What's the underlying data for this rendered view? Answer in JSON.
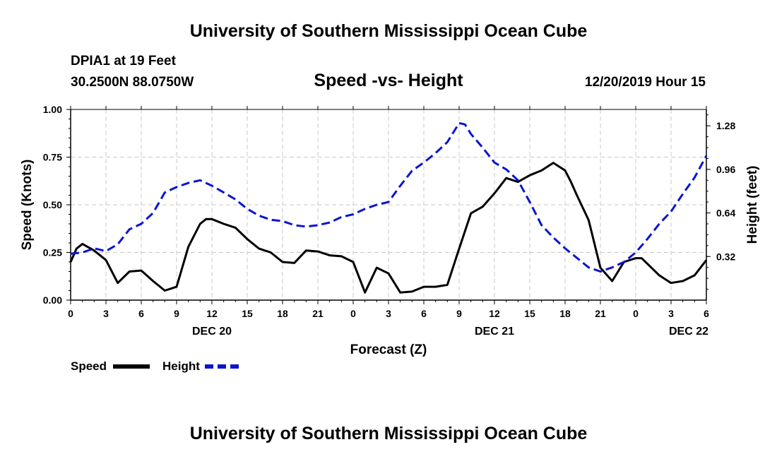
{
  "header": {
    "title": "University of Southern Mississippi Ocean Cube",
    "station": "DPIA1 at 19 Feet",
    "coords": "30.2500N 88.0750W",
    "subtitle": "Speed -vs- Height",
    "date": "12/20/2019 Hour 15"
  },
  "footer": {
    "title": "University of Southern Mississippi Ocean Cube"
  },
  "legend": {
    "speed": "Speed",
    "height": "Height"
  },
  "colors": {
    "speed": "#000000",
    "height": "#0a14d2",
    "grid": "#c8c8c8"
  },
  "chart_data": {
    "type": "line",
    "title": "Speed -vs- Height",
    "xlabel": "Forecast (Z)",
    "ylabel": "Speed (Knots)",
    "y2label": "Height (feet)",
    "xlim": [
      0,
      54
    ],
    "ylim": [
      0,
      1.0
    ],
    "y2lim": [
      0.0,
      1.4
    ],
    "x_ticks": [
      0,
      3,
      6,
      9,
      12,
      15,
      18,
      21,
      24,
      27,
      30,
      33,
      36,
      39,
      42,
      45,
      48,
      51,
      54
    ],
    "x_tick_labels": [
      "0",
      "3",
      "6",
      "9",
      "12",
      "15",
      "18",
      "21",
      "0",
      "3",
      "6",
      "9",
      "12",
      "15",
      "18",
      "21",
      "0",
      "3",
      "6"
    ],
    "y_ticks": [
      0,
      0.25,
      0.5,
      0.75,
      1.0
    ],
    "y_tick_labels": [
      "0.00",
      "0.25",
      "0.50",
      "0.75",
      "1.00"
    ],
    "y2_ticks": [
      0.32,
      0.64,
      0.96,
      1.28
    ],
    "y2_tick_labels": [
      "0.32",
      "0.64",
      "0.96",
      "1.28"
    ],
    "day_labels": [
      {
        "x": 12,
        "label": "DEC 20"
      },
      {
        "x": 36,
        "label": "DEC 21"
      },
      {
        "x": 52.5,
        "label": "DEC 22"
      }
    ],
    "grid": true,
    "series": [
      {
        "name": "Speed",
        "axis": "left",
        "style": "solid",
        "x": [
          0,
          0.5,
          1,
          2,
          3,
          4,
          5,
          6,
          7,
          8,
          8.5,
          9,
          10,
          11,
          11.5,
          12,
          13,
          14,
          15,
          16,
          17,
          18,
          19,
          20,
          21,
          22,
          23,
          24,
          25,
          26,
          27,
          28,
          29,
          30,
          31,
          32,
          33,
          34,
          35,
          36,
          37,
          38,
          39,
          40,
          41,
          42,
          42.5,
          43,
          44,
          45,
          46,
          47,
          48,
          48.5,
          49,
          50,
          51,
          52,
          53,
          54
        ],
        "values": [
          0.2,
          0.27,
          0.295,
          0.26,
          0.21,
          0.09,
          0.15,
          0.155,
          0.1,
          0.05,
          0.06,
          0.07,
          0.28,
          0.4,
          0.425,
          0.425,
          0.4,
          0.38,
          0.32,
          0.27,
          0.25,
          0.2,
          0.195,
          0.26,
          0.255,
          0.235,
          0.23,
          0.2,
          0.04,
          0.17,
          0.14,
          0.04,
          0.045,
          0.07,
          0.07,
          0.08,
          0.27,
          0.455,
          0.49,
          0.56,
          0.64,
          0.62,
          0.655,
          0.68,
          0.72,
          0.68,
          0.62,
          0.55,
          0.42,
          0.17,
          0.1,
          0.2,
          0.22,
          0.22,
          0.19,
          0.13,
          0.09,
          0.1,
          0.13,
          0.21
        ]
      },
      {
        "name": "Height",
        "axis": "right",
        "style": "dashed",
        "x": [
          0,
          1,
          2,
          3,
          4,
          5,
          6,
          7,
          8,
          9,
          10,
          11,
          12,
          13,
          14,
          15,
          16,
          17,
          18,
          19,
          20,
          21,
          22,
          23,
          24,
          25,
          26,
          27,
          28,
          29,
          30,
          31,
          32,
          33,
          33.5,
          34,
          35,
          36,
          37,
          38,
          39,
          40,
          41,
          42,
          43,
          44,
          45,
          46,
          47,
          48,
          49,
          50,
          51,
          52,
          53,
          54
        ],
        "values": [
          0.34,
          0.35,
          0.38,
          0.36,
          0.41,
          0.52,
          0.56,
          0.64,
          0.79,
          0.83,
          0.86,
          0.88,
          0.84,
          0.79,
          0.74,
          0.67,
          0.62,
          0.59,
          0.58,
          0.55,
          0.54,
          0.55,
          0.57,
          0.61,
          0.63,
          0.67,
          0.7,
          0.72,
          0.84,
          0.95,
          1.01,
          1.08,
          1.16,
          1.3,
          1.29,
          1.22,
          1.12,
          1.01,
          0.96,
          0.88,
          0.72,
          0.55,
          0.46,
          0.38,
          0.31,
          0.24,
          0.21,
          0.24,
          0.28,
          0.35,
          0.45,
          0.56,
          0.65,
          0.78,
          0.9,
          1.06
        ]
      }
    ]
  }
}
